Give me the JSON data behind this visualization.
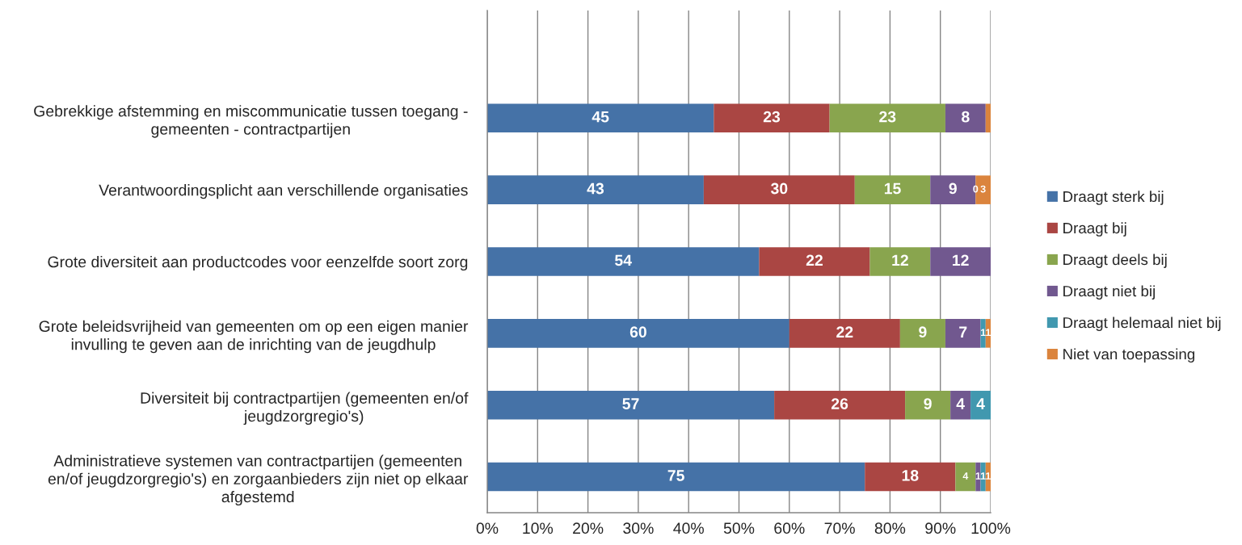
{
  "chart_data": {
    "type": "bar",
    "orientation": "horizontal",
    "stacked": true,
    "categories": [
      null,
      "Gebrekkige afstemming en miscommunicatie tussen toegang -\ngemeenten - contractpartijen",
      "Verantwoordingsplicht aan verschillende organisaties",
      "Grote diversiteit aan productcodes voor eenzelfde soort zorg",
      "Grote beleidsvrijheid van gemeenten om op een eigen manier\ninvulling te geven aan de inrichting van de jeugdhulp",
      "Diversiteit bij contractpartijen (gemeenten en/of\njeugdzorgregio's)",
      "Administratieve systemen van contractpartijen (gemeenten\nen/of jeugdzorgregio's) en zorgaanbieders zijn niet op elkaar\nafgestemd"
    ],
    "series": [
      {
        "name": "Draagt sterk bij",
        "color": "#4572a7",
        "values": [
          null,
          45,
          43,
          54,
          60,
          57,
          75
        ],
        "value_labels": [
          null,
          "45",
          "43",
          "54",
          "60",
          "57",
          "75"
        ]
      },
      {
        "name": "Draagt bij",
        "color": "#aa4643",
        "values": [
          null,
          23,
          30,
          22,
          22,
          26,
          18
        ],
        "value_labels": [
          null,
          "23",
          "30",
          "22",
          "22",
          "26",
          "18"
        ]
      },
      {
        "name": "Draagt deels bij",
        "color": "#89a54e",
        "values": [
          null,
          23,
          15,
          12,
          9,
          9,
          4
        ],
        "value_labels": [
          null,
          "23",
          "15",
          "12",
          "9",
          "9",
          "4"
        ]
      },
      {
        "name": "Draagt niet bij",
        "color": "#71588f",
        "values": [
          null,
          8,
          9,
          12,
          7,
          4,
          1
        ],
        "value_labels": [
          null,
          "8",
          "9",
          "12",
          "7",
          "4",
          "1"
        ]
      },
      {
        "name": "Draagt helemaal niet bij",
        "color": "#4198af",
        "values": [
          null,
          0,
          0,
          0,
          1,
          4,
          1
        ],
        "value_labels": [
          null,
          null,
          "0",
          null,
          "1",
          "4",
          "1"
        ]
      },
      {
        "name": "Niet van toepassing",
        "color": "#db843d",
        "values": [
          null,
          1,
          3,
          0,
          1,
          0,
          1
        ],
        "value_labels": [
          null,
          null,
          "3",
          null,
          "1",
          null,
          "1"
        ]
      }
    ],
    "xlim": [
      0,
      100
    ],
    "xticks": [
      {
        "value": 0,
        "label": "0%"
      },
      {
        "value": 10,
        "label": "10%"
      },
      {
        "value": 20,
        "label": "20%"
      },
      {
        "value": 30,
        "label": "30%"
      },
      {
        "value": 40,
        "label": "40%"
      },
      {
        "value": 50,
        "label": "50%"
      },
      {
        "value": 60,
        "label": "60%"
      },
      {
        "value": 70,
        "label": "70%"
      },
      {
        "value": 80,
        "label": "80%"
      },
      {
        "value": 90,
        "label": "90%"
      },
      {
        "value": 100,
        "label": "100%"
      }
    ],
    "grid": "x",
    "legend": "right"
  }
}
